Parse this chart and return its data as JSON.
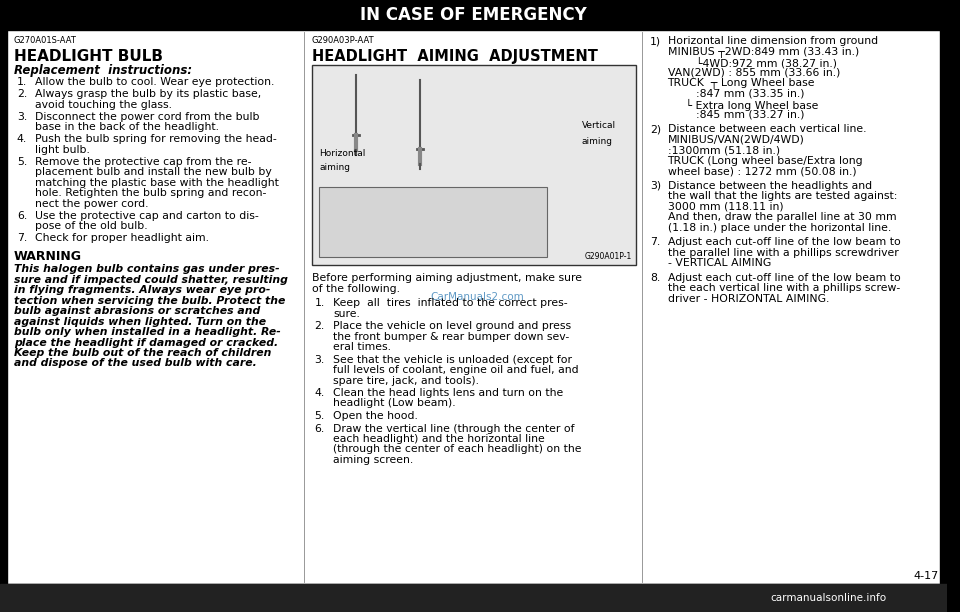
{
  "title": "IN CASE OF EMERGENCY",
  "bg_color": "#000000",
  "content_bg": "#ffffff",
  "header_text_color": "#ffffff",
  "border_color": "#000000",
  "footer_bg": "#222222",
  "footer_text": "carmanualsonline.info",
  "page_number": "4-17",
  "watermark": "CarManuals2.com",
  "watermark_color": "#4488bb",
  "col1_code": "G270A01S-AAT",
  "col1_heading": "HEADLIGHT BULB",
  "col1_subheading": "Replacement  instructions:",
  "col1_items": [
    "Allow the bulb to cool. Wear eye protection.",
    "Always grasp the bulb by its plastic base,\navoid touching the glass.",
    "Disconnect the power cord from the bulb\nbase in the back of the headlight.",
    "Push the bulb spring for removing the head-\nlight bulb.",
    "Remove the protective cap from the re-\nplacement bulb and install the new bulb by\nmatching the plastic base with the headlight\nhole. Retighten the bulb spring and recon-\nnect the power cord.",
    "Use the protective cap and carton to dis-\npose of the old bulb.",
    "Check for proper headlight aim."
  ],
  "col1_warning_title": "WARNING",
  "col1_warning_body": "This halogen bulb contains gas under pres-\nsure and if impacted could shatter, resulting\nin flying fragments. Always wear eye pro-\ntection when servicing the bulb. Protect the\nbulb against abrasions or scratches and\nagainst liquids when lighted. Turn on the\nbulb only when installed in a headlight. Re-\nplace the headlight if damaged or cracked.\nKeep the bulb out of the reach of children\nand dispose of the used bulb with care.",
  "col2_code": "G290A03P-AAT",
  "col2_heading": "HEADLIGHT  AIMING  ADJUSTMENT",
  "col2_img_label": "G290A01P-1",
  "col2_horiz_label1": "Horizontal",
  "col2_horiz_label2": "aiming",
  "col2_vert_label1": "Vertical",
  "col2_vert_label2": "aiming",
  "col2_img_caption1": "Before performing aiming adjustment, make sure",
  "col2_img_caption2": "of the following.",
  "col2_items": [
    "Keep  all  tires  inflated to the correct pres-\nsure.",
    "Place the vehicle on level ground and press\nthe front bumper & rear bumper down sev-\neral times.",
    "See that the vehicle is unloaded (except for\nfull levels of coolant, engine oil and fuel, and\nspare tire, jack, and tools).",
    "Clean the head lights lens and turn on the\nheadlight (Low beam).",
    "Open the hood.",
    "Draw the vertical line (through the center of\neach headlight) and the horizontal line\n(through the center of each headlight) on the\naiming screen."
  ],
  "col3_line1_num": "1)",
  "col3_line1": "   Horizontal line dimension from ground",
  "col3_line2": "   MINIBUS ┬2WD:849 mm (33.43 in.)",
  "col3_line3": "            └4WD:972 mm (38.27 in.)",
  "col3_line4": "   VAN(2WD) : 855 mm (33.66 in.)",
  "col3_line5": "   TRUCK   ┬ Long Wheel base",
  "col3_line6": "            :847 mm (33.35 in.)",
  "col3_line7": "         └ Extra long Wheel base",
  "col3_line8": "            :845 mm (33.27 in.)",
  "col3_line9_num": "2)",
  "col3_line9": "   Distance between each vertical line.",
  "col3_line10": "   MINIBUS/VAN(2WD/4WD)",
  "col3_line11": "   :1300mm (51.18 in.)",
  "col3_line12": "   TRUCK (Long wheel base/Extra long",
  "col3_line13": "   wheel base) : 1272 mm (50.08 in.)",
  "col3_line14_num": "3)",
  "col3_line14": "   Distance between the headlights and",
  "col3_line15": "   the wall that the lights are tested against:",
  "col3_line16": "   3000 mm (118.11 in)",
  "col3_line17": "   And then, draw the parallel line at 30 mm",
  "col3_line18": "   (1.18 in.) place under the horizontal line.",
  "col3_line19_num": "7.",
  "col3_line19": "   Adjust each cut-off line of the low beam to",
  "col3_line20": "   the parallel line with a phillips screwdriver",
  "col3_line21": "   - VERTICAL AIMING",
  "col3_line22_num": "8.",
  "col3_line22": "   Adjust each cut-off line of the low beam to",
  "col3_line23": "   the each vertical line with a phillips screw-",
  "col3_line24": "   driver - HORIZONTAL AIMING."
}
